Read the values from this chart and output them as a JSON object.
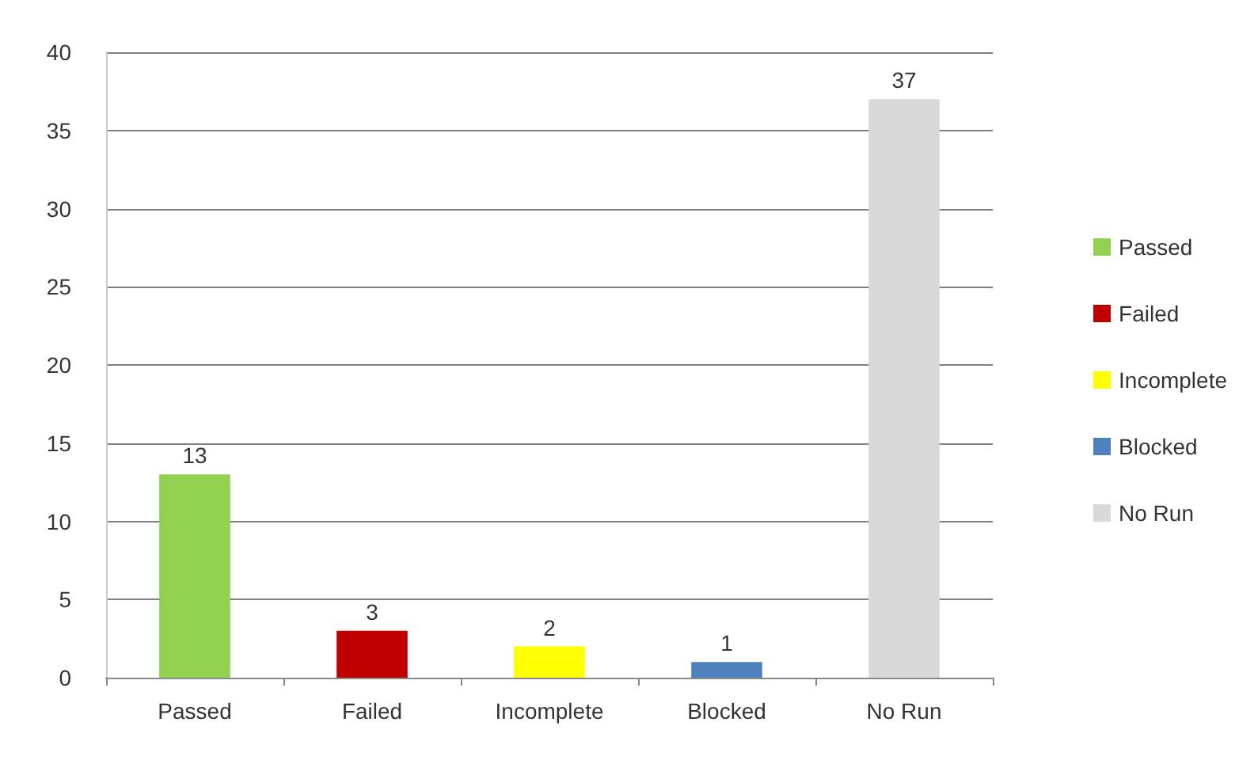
{
  "chart_data": {
    "type": "bar",
    "categories": [
      "Passed",
      "Failed",
      "Incomplete",
      "Blocked",
      "No Run"
    ],
    "series": [
      {
        "name": "Passed",
        "color": "#92d050",
        "values": [
          13,
          null,
          null,
          null,
          null
        ]
      },
      {
        "name": "Failed",
        "color": "#c00000",
        "values": [
          null,
          3,
          null,
          null,
          null
        ]
      },
      {
        "name": "Incomplete",
        "color": "#ffff00",
        "values": [
          null,
          null,
          2,
          null,
          null
        ]
      },
      {
        "name": "Blocked",
        "color": "#4f81bd",
        "values": [
          null,
          null,
          null,
          1,
          null
        ]
      },
      {
        "name": "No Run",
        "color": "#d9d9d9",
        "values": [
          null,
          null,
          null,
          null,
          37
        ]
      }
    ],
    "stacked": true,
    "ylim": [
      0,
      40
    ],
    "yticks": [
      0,
      5,
      10,
      15,
      20,
      25,
      30,
      35,
      40
    ],
    "grid": "y",
    "legend": "right",
    "data_labels": true
  }
}
